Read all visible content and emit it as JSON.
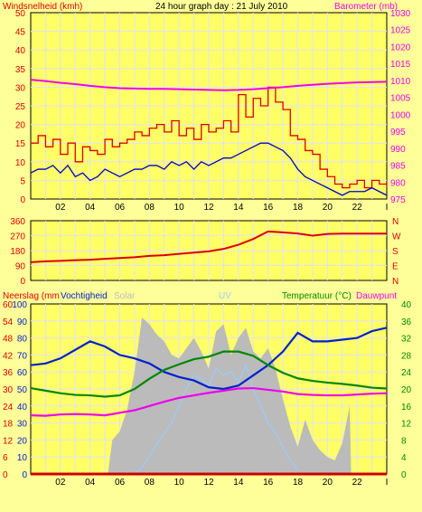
{
  "title": "24 hour graph day : 21 July 2010",
  "colors": {
    "background": "#ffff99",
    "plot_bg": "#ffff66",
    "grid": "#e0e0ff",
    "wind_avg": "#0000cc",
    "wind_gust": "#dd0000",
    "barometer": "#ee00ee",
    "wind_dir": "#dd0000",
    "humidity": "#0022cc",
    "temperature": "#008800",
    "dewpoint": "#ee00ee",
    "solar": "#bbbbbb",
    "uv": "#99ccff",
    "rain": "#cc0000"
  },
  "chart_data": [
    {
      "type": "line",
      "panel": "wind",
      "left_axis_title": "Windsnelheid (kmh)",
      "right_axis_title": "Barometer (mb)",
      "x_ticks": [
        "02",
        "04",
        "06",
        "08",
        "10",
        "12",
        "14",
        "16",
        "18",
        "20",
        "22",
        "I"
      ],
      "y_left_ticks": [
        "0",
        "5",
        "10",
        "15",
        "20",
        "25",
        "30",
        "35",
        "40",
        "45",
        "50"
      ],
      "y_left_range": [
        0,
        50
      ],
      "y_right_ticks": [
        "975",
        "980",
        "985",
        "990",
        "995",
        "1000",
        "1005",
        "1010",
        "1015",
        "1020",
        "1025",
        "1030"
      ],
      "y_right_range": [
        975,
        1030
      ],
      "x_range": [
        0,
        24
      ],
      "series": [
        {
          "key": "gust",
          "axis": "left",
          "step": true,
          "x": [
            0,
            0.5,
            1,
            1.5,
            2,
            2.5,
            3,
            3.5,
            4,
            4.5,
            5,
            5.5,
            6,
            6.5,
            7,
            7.5,
            8,
            8.5,
            9,
            9.5,
            10,
            10.5,
            11,
            11.5,
            12,
            12.5,
            13,
            13.5,
            14,
            14.5,
            15,
            15.5,
            16,
            16.5,
            17,
            17.5,
            18,
            18.5,
            19,
            19.5,
            20,
            20.5,
            21,
            21.5,
            22,
            22.5,
            23,
            23.5,
            24
          ],
          "values": [
            15,
            17,
            14,
            16,
            12,
            15,
            10,
            14,
            13,
            12,
            16,
            14,
            15,
            16,
            18,
            17,
            19,
            20,
            18,
            21,
            17,
            19,
            16,
            20,
            18,
            19,
            21,
            18,
            28,
            22,
            27,
            25,
            30,
            26,
            24,
            17,
            16,
            13,
            12,
            8,
            6,
            4,
            3,
            4,
            5,
            3,
            5,
            4,
            3
          ]
        },
        {
          "key": "avg",
          "axis": "left",
          "step": false,
          "x": [
            0,
            0.5,
            1,
            1.5,
            2,
            2.5,
            3,
            3.5,
            4,
            4.5,
            5,
            5.5,
            6,
            6.5,
            7,
            7.5,
            8,
            8.5,
            9,
            9.5,
            10,
            10.5,
            11,
            11.5,
            12,
            12.5,
            13,
            13.5,
            14,
            14.5,
            15,
            15.5,
            16,
            16.5,
            17,
            17.5,
            18,
            18.5,
            19,
            19.5,
            20,
            20.5,
            21,
            21.5,
            22,
            22.5,
            23,
            23.5,
            24
          ],
          "values": [
            7,
            8,
            8,
            9,
            7,
            9,
            6,
            7,
            5,
            6,
            8,
            7,
            6,
            7,
            8,
            8,
            9,
            9,
            8,
            10,
            9,
            10,
            8,
            10,
            9,
            10,
            11,
            11,
            12,
            13,
            14,
            15,
            15,
            14,
            13,
            11,
            8,
            6,
            5,
            4,
            3,
            2,
            1,
            2,
            2,
            2,
            3,
            2,
            1
          ]
        },
        {
          "key": "barometer",
          "axis": "right",
          "step": false,
          "x": [
            0,
            1,
            2,
            3,
            4,
            5,
            6,
            7,
            8,
            9,
            10,
            11,
            12,
            13,
            14,
            15,
            16,
            17,
            18,
            19,
            20,
            21,
            22,
            23,
            24
          ],
          "values": [
            1010.2,
            1009.8,
            1009.3,
            1008.9,
            1008.4,
            1008.0,
            1007.7,
            1007.6,
            1007.5,
            1007.5,
            1007.4,
            1007.3,
            1007.2,
            1007.1,
            1007.2,
            1007.4,
            1007.7,
            1008.0,
            1008.4,
            1008.7,
            1009.0,
            1009.2,
            1009.4,
            1009.5,
            1009.6
          ]
        }
      ]
    },
    {
      "type": "line",
      "panel": "direction",
      "right_axis_labels": [
        "N",
        "W",
        "S",
        "E",
        "N"
      ],
      "y_left_ticks": [
        "0",
        "90",
        "180",
        "270",
        "360"
      ],
      "y_range": [
        0,
        360
      ],
      "x_range": [
        0,
        24
      ],
      "series": [
        {
          "key": "direction",
          "x": [
            0,
            1,
            2,
            3,
            4,
            5,
            6,
            7,
            8,
            9,
            10,
            11,
            12,
            13,
            14,
            15,
            16,
            17,
            18,
            19,
            20,
            21,
            22,
            23,
            24
          ],
          "values": [
            110,
            115,
            118,
            122,
            125,
            130,
            135,
            140,
            148,
            152,
            160,
            168,
            175,
            190,
            215,
            250,
            295,
            290,
            283,
            270,
            280,
            282,
            282,
            282,
            282
          ]
        }
      ]
    },
    {
      "type": "line",
      "panel": "climate",
      "left_axis_title": "Neerslag (mm",
      "left_axis_title_2": "Vochtigheid",
      "center_label_solar": "Solar",
      "center_label_uv": "UV",
      "right_axis_title": "Temperatuur (°C)",
      "right_axis_title_2": "Dauwpunt",
      "y_left_ticks": [
        "0",
        "6",
        "12",
        "18",
        "24",
        "30",
        "36",
        "42",
        "48",
        "54",
        "60"
      ],
      "y_left2_ticks": [
        "0",
        "10",
        "20",
        "30",
        "40",
        "50",
        "60",
        "70",
        "80",
        "90",
        "100"
      ],
      "y_right_ticks": [
        "0",
        "4",
        "8",
        "12",
        "16",
        "20",
        "24",
        "28",
        "32",
        "36",
        "40"
      ],
      "y_right_range": [
        0,
        40
      ],
      "x_range": [
        0,
        24
      ],
      "series": [
        {
          "key": "solar",
          "axis": "percent",
          "area": true,
          "x": [
            0,
            5.2,
            5.5,
            6,
            6.5,
            7,
            7.5,
            8,
            8.5,
            9,
            9.5,
            10,
            10.5,
            11,
            11.5,
            12,
            12.5,
            13,
            13.5,
            14,
            14.5,
            15,
            15.5,
            16,
            16.5,
            17,
            17.5,
            18,
            18.5,
            19,
            19.5,
            20,
            20.5,
            21,
            21.5,
            21.6
          ],
          "values": [
            0,
            0,
            20,
            25,
            38,
            60,
            92,
            88,
            82,
            78,
            70,
            68,
            74,
            80,
            72,
            62,
            84,
            88,
            70,
            80,
            86,
            72,
            68,
            74,
            62,
            44,
            28,
            16,
            32,
            20,
            14,
            10,
            8,
            18,
            40,
            0
          ]
        },
        {
          "key": "uv",
          "axis": "percent",
          "x": [
            7,
            7.5,
            8,
            8.5,
            9,
            9.5,
            10,
            10.5,
            11,
            11.5,
            12,
            12.5,
            13,
            13.5,
            14,
            14.5,
            15,
            15.5,
            16,
            16.5,
            17,
            17.5,
            18
          ],
          "values": [
            0,
            4,
            10,
            18,
            24,
            30,
            40,
            50,
            58,
            56,
            52,
            62,
            58,
            60,
            54,
            64,
            50,
            40,
            30,
            24,
            16,
            8,
            2
          ]
        },
        {
          "key": "humidity",
          "axis": "percent",
          "x": [
            0,
            1,
            2,
            3,
            4,
            5,
            6,
            7,
            8,
            9,
            10,
            11,
            12,
            13,
            14,
            15,
            16,
            17,
            18,
            19,
            20,
            21,
            22,
            23,
            23.5,
            24
          ],
          "values": [
            64,
            65,
            68,
            73,
            78,
            75,
            70,
            68,
            65,
            60,
            57,
            55,
            51,
            50,
            52,
            58,
            64,
            72,
            83,
            78,
            78,
            79,
            80,
            84,
            85,
            86
          ]
        },
        {
          "key": "temperature",
          "axis": "right",
          "x": [
            0,
            1,
            2,
            3,
            4,
            5,
            6,
            7,
            8,
            9,
            10,
            11,
            12,
            13,
            14,
            15,
            16,
            17,
            18,
            19,
            20,
            21,
            22,
            23,
            24
          ],
          "values": [
            20.2,
            19.6,
            19.0,
            18.6,
            18.5,
            18.2,
            18.5,
            20.0,
            22.4,
            24.5,
            25.8,
            27.0,
            27.6,
            28.8,
            28.8,
            27.8,
            25.6,
            23.8,
            22.5,
            21.9,
            21.5,
            21.2,
            20.8,
            20.3,
            20.1
          ]
        },
        {
          "key": "dewpoint",
          "axis": "right",
          "x": [
            0,
            1,
            2,
            3,
            4,
            5,
            6,
            7,
            8,
            9,
            10,
            11,
            12,
            13,
            14,
            15,
            16,
            17,
            18,
            19,
            20,
            21,
            22,
            23,
            24
          ],
          "values": [
            13.8,
            13.7,
            14.0,
            14.1,
            14.0,
            13.8,
            14.4,
            15.0,
            16.0,
            17.0,
            17.9,
            18.5,
            19.1,
            19.6,
            20.1,
            20.2,
            19.8,
            19.4,
            18.8,
            18.6,
            18.5,
            18.5,
            18.7,
            18.9,
            19.0
          ]
        },
        {
          "key": "rain",
          "axis": "right",
          "x": [
            0,
            24
          ],
          "values": [
            0,
            0
          ]
        }
      ]
    }
  ]
}
